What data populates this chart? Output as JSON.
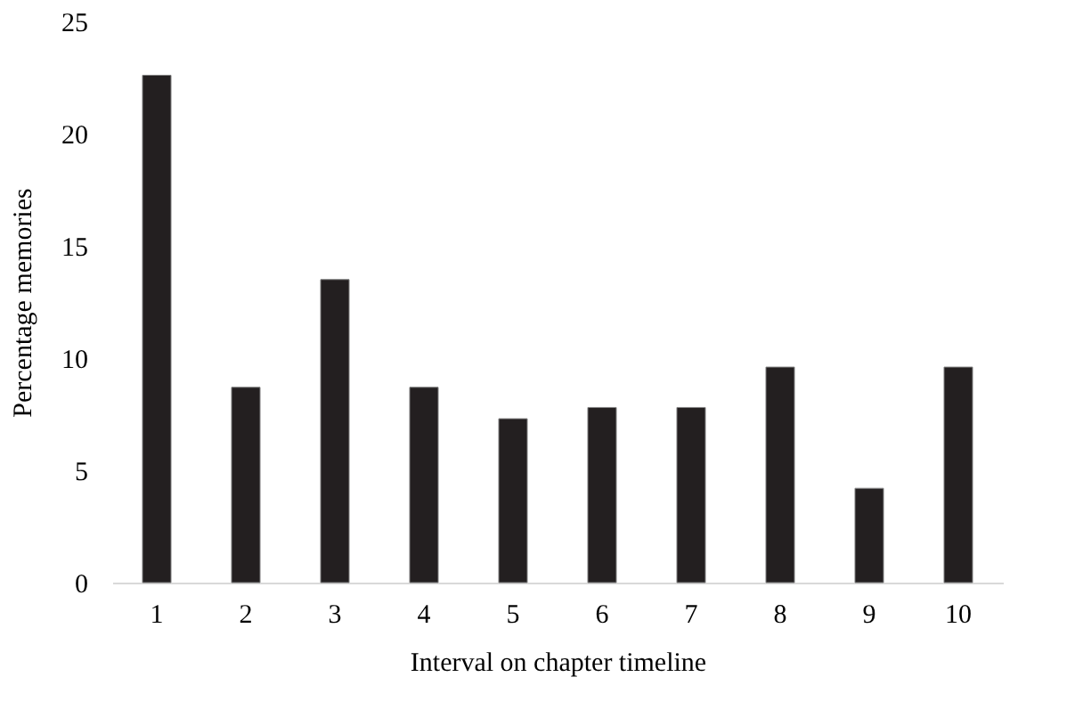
{
  "chart_data": {
    "type": "bar",
    "xlabel": "Interval on chapter timeline",
    "ylabel": "Percentage memories",
    "categories": [
      "1",
      "2",
      "3",
      "4",
      "5",
      "6",
      "7",
      "8",
      "9",
      "10"
    ],
    "values": [
      22.6,
      8.7,
      13.5,
      8.7,
      7.3,
      7.8,
      7.8,
      9.6,
      4.2,
      9.6
    ],
    "color": "#231f20",
    "ylim": [
      0,
      25
    ],
    "yticks": [
      0,
      5,
      10,
      15,
      20,
      25
    ],
    "grid": false
  }
}
